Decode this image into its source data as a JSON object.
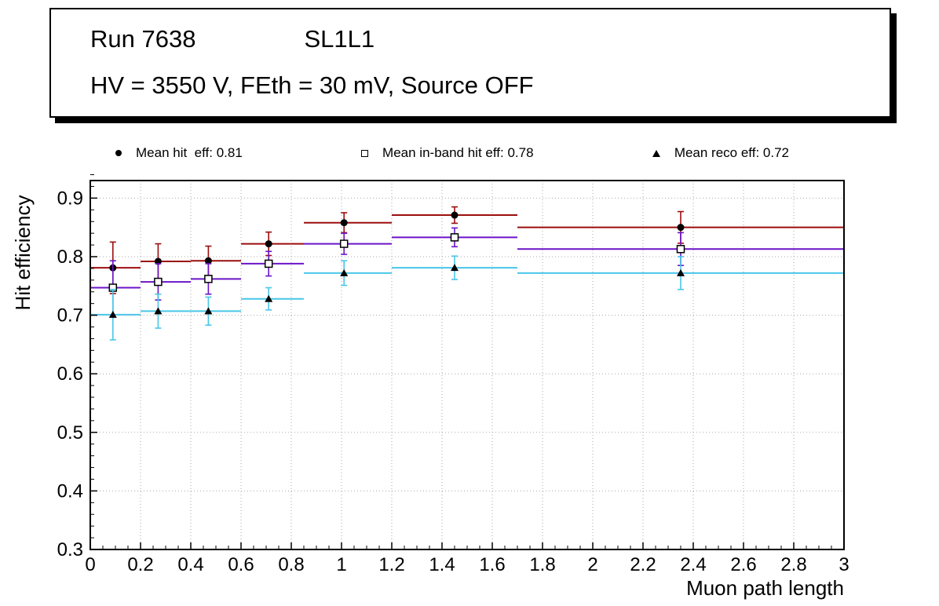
{
  "title_box": {
    "run": "Run 7638",
    "layer": "SL1L1",
    "conditions": "HV = 3550 V, FEth = 30 mV, Source OFF"
  },
  "chart_data": {
    "type": "scatter",
    "title": "",
    "xlabel": "Muon path length",
    "ylabel": "Hit efficiency",
    "xlim": [
      0,
      3
    ],
    "ylim": [
      0.3,
      0.93
    ],
    "grid": "dotted",
    "grid_color": "#aaaaaa",
    "frame_color": "#000000",
    "x_major_ticks": [
      0,
      0.2,
      0.4,
      0.6,
      0.8,
      1,
      1.2,
      1.4,
      1.6,
      1.8,
      2,
      2.2,
      2.4,
      2.6,
      2.8,
      3
    ],
    "x_tick_labels": [
      "0",
      "0.2",
      "0.4",
      "0.6",
      "0.8",
      "1",
      "1.2",
      "1.4",
      "1.6",
      "1.8",
      "2",
      "2.2",
      "2.4",
      "2.6",
      "2.8",
      "3"
    ],
    "y_major_ticks": [
      0.3,
      0.4,
      0.5,
      0.6,
      0.7,
      0.8,
      0.9
    ],
    "y_tick_labels": [
      "0.3",
      "0.4",
      "0.5",
      "0.6",
      "0.7",
      "0.8",
      "0.9"
    ],
    "legend_position": "top",
    "series": [
      {
        "name": "mean_hit_eff",
        "legend_label": "Mean hit  eff: 0.81",
        "mean_value": 0.81,
        "marker": "filled-circle",
        "marker_color": "#000000",
        "line_color": "#9c0e0e",
        "points": [
          {
            "bin": [
              0.0,
              0.2
            ],
            "x": 0.09,
            "y": 0.781,
            "yerr": 0.044
          },
          {
            "bin": [
              0.2,
              0.4
            ],
            "x": 0.27,
            "y": 0.792,
            "yerr": 0.03
          },
          {
            "bin": [
              0.4,
              0.6
            ],
            "x": 0.47,
            "y": 0.793,
            "yerr": 0.025
          },
          {
            "bin": [
              0.6,
              0.85
            ],
            "x": 0.71,
            "y": 0.822,
            "yerr": 0.02
          },
          {
            "bin": [
              0.85,
              1.2
            ],
            "x": 1.01,
            "y": 0.858,
            "yerr": 0.017
          },
          {
            "bin": [
              1.2,
              1.7
            ],
            "x": 1.45,
            "y": 0.871,
            "yerr": 0.014
          },
          {
            "bin": [
              1.7,
              3.0
            ],
            "x": 2.35,
            "y": 0.85,
            "yerr": 0.027
          }
        ]
      },
      {
        "name": "mean_inband_hit_eff",
        "legend_label": "Mean in-band hit eff: 0.78",
        "mean_value": 0.78,
        "marker": "open-square",
        "marker_color": "#000000",
        "line_color": "#6b14c8",
        "points": [
          {
            "bin": [
              0.0,
              0.2
            ],
            "x": 0.09,
            "y": 0.747,
            "yerr": 0.046
          },
          {
            "bin": [
              0.2,
              0.4
            ],
            "x": 0.27,
            "y": 0.757,
            "yerr": 0.031
          },
          {
            "bin": [
              0.4,
              0.6
            ],
            "x": 0.47,
            "y": 0.762,
            "yerr": 0.026
          },
          {
            "bin": [
              0.6,
              0.85
            ],
            "x": 0.71,
            "y": 0.788,
            "yerr": 0.021
          },
          {
            "bin": [
              0.85,
              1.2
            ],
            "x": 1.01,
            "y": 0.822,
            "yerr": 0.018
          },
          {
            "bin": [
              1.2,
              1.7
            ],
            "x": 1.45,
            "y": 0.833,
            "yerr": 0.016
          },
          {
            "bin": [
              1.7,
              3.0
            ],
            "x": 2.35,
            "y": 0.813,
            "yerr": 0.028
          }
        ]
      },
      {
        "name": "mean_reco_eff",
        "legend_label": "Mean reco eff: 0.72",
        "mean_value": 0.72,
        "marker": "filled-triangle",
        "marker_color": "#000000",
        "line_color": "#49c6e8",
        "points": [
          {
            "bin": [
              0.0,
              0.2
            ],
            "x": 0.09,
            "y": 0.701,
            "yerr": 0.043
          },
          {
            "bin": [
              0.2,
              0.4
            ],
            "x": 0.27,
            "y": 0.707,
            "yerr": 0.029
          },
          {
            "bin": [
              0.4,
              0.6
            ],
            "x": 0.47,
            "y": 0.707,
            "yerr": 0.024
          },
          {
            "bin": [
              0.6,
              0.85
            ],
            "x": 0.71,
            "y": 0.728,
            "yerr": 0.019
          },
          {
            "bin": [
              0.85,
              1.2
            ],
            "x": 1.01,
            "y": 0.772,
            "yerr": 0.021
          },
          {
            "bin": [
              1.2,
              1.7
            ],
            "x": 1.45,
            "y": 0.781,
            "yerr": 0.02
          },
          {
            "bin": [
              1.7,
              3.0
            ],
            "x": 2.35,
            "y": 0.772,
            "yerr": 0.028
          }
        ]
      }
    ]
  }
}
